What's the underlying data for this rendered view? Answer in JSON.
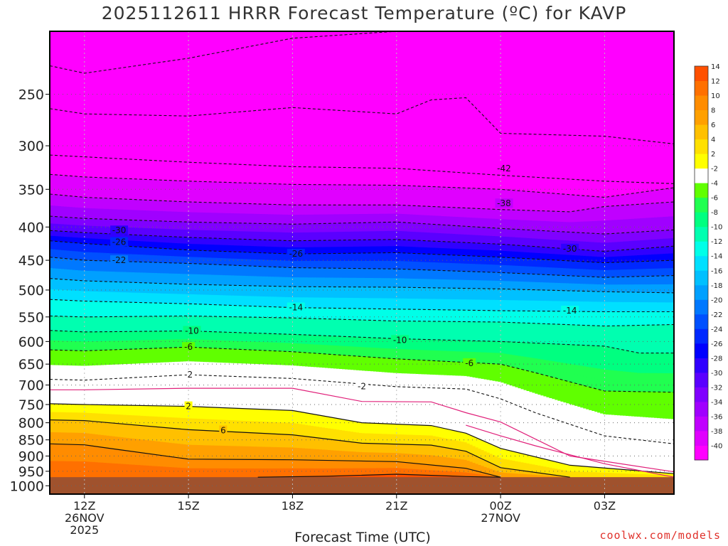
{
  "chart_data": {
    "type": "heatmap",
    "title": "2025112611 HRRR Forecast Temperature (ºC) for KAVP",
    "xlabel": "Forecast Time (UTC)",
    "ylabel": "",
    "x_ticks": [
      {
        "hour": 0,
        "lines": [
          "12Z",
          "26NOV",
          "2025"
        ]
      },
      {
        "hour": 3,
        "lines": [
          "15Z"
        ]
      },
      {
        "hour": 6,
        "lines": [
          "18Z"
        ]
      },
      {
        "hour": 9,
        "lines": [
          "21Z"
        ]
      },
      {
        "hour": 12,
        "lines": [
          "00Z",
          "27NOV"
        ]
      },
      {
        "hour": 15,
        "lines": [
          "03Z"
        ]
      }
    ],
    "xlim": [
      -1,
      17
    ],
    "y_ticks": [
      250,
      300,
      350,
      400,
      450,
      500,
      550,
      600,
      650,
      700,
      750,
      800,
      850,
      900,
      950,
      1000
    ],
    "ylim_hpa": [
      200,
      1030
    ],
    "ground_pressure": 970,
    "colorbar": {
      "levels": [
        -40,
        -38,
        -36,
        -34,
        -32,
        -30,
        -28,
        -26,
        -24,
        -22,
        -20,
        -18,
        -16,
        -14,
        -12,
        -10,
        -8,
        -6,
        -4,
        -2,
        2,
        4,
        6,
        8,
        10,
        12,
        14
      ],
      "colors": [
        "#ff00ff",
        "#e000ff",
        "#c000ff",
        "#a000ff",
        "#8000ff",
        "#5a00ff",
        "#3000ff",
        "#0000ff",
        "#0028ff",
        "#0050ff",
        "#0078ff",
        "#00a0ff",
        "#00c0ff",
        "#00e0ff",
        "#00ffe8",
        "#00ffb0",
        "#00ff80",
        "#20ff50",
        "#60ff00",
        "#ffffff",
        "#ffff00",
        "#ffe000",
        "#ffc000",
        "#ffa000",
        "#ff8c00",
        "#ff7000",
        "#ff5000"
      ]
    },
    "series": [
      {
        "name": "-46",
        "values": [
          [
            -1,
            226
          ],
          [
            0,
            232
          ],
          [
            3,
            220
          ],
          [
            6,
            205
          ],
          [
            9,
            200
          ],
          [
            12,
            200
          ],
          [
            15,
            200
          ],
          [
            17,
            200
          ]
        ]
      },
      {
        "name": "-44",
        "values": [
          [
            -1,
            263
          ],
          [
            0,
            268
          ],
          [
            3,
            270
          ],
          [
            6,
            262
          ],
          [
            9,
            268
          ],
          [
            10,
            255
          ],
          [
            11,
            253
          ],
          [
            12,
            287
          ],
          [
            15,
            290
          ],
          [
            17,
            298
          ]
        ]
      },
      {
        "name": "-42",
        "values": [
          [
            -1,
            310
          ],
          [
            0,
            312
          ],
          [
            3,
            318
          ],
          [
            6,
            323
          ],
          [
            9,
            325
          ],
          [
            12,
            333
          ],
          [
            15,
            340
          ],
          [
            17,
            343
          ]
        ]
      },
      {
        "name": "-40",
        "values": [
          [
            -1,
            332
          ],
          [
            0,
            335
          ],
          [
            3,
            340
          ],
          [
            6,
            344
          ],
          [
            9,
            345
          ],
          [
            12,
            350
          ],
          [
            15,
            360
          ],
          [
            17,
            348
          ]
        ]
      },
      {
        "name": "-38",
        "values": [
          [
            -1,
            356
          ],
          [
            0,
            360
          ],
          [
            3,
            366
          ],
          [
            6,
            370
          ],
          [
            9,
            370
          ],
          [
            12,
            376
          ],
          [
            14,
            379
          ],
          [
            15,
            372
          ],
          [
            17,
            366
          ]
        ]
      },
      {
        "name": "-34",
        "values": [
          [
            -1,
            385
          ],
          [
            0,
            388
          ],
          [
            3,
            393
          ],
          [
            6,
            396
          ],
          [
            9,
            393
          ],
          [
            12,
            402
          ],
          [
            15,
            410
          ],
          [
            17,
            404
          ]
        ]
      },
      {
        "name": "-30",
        "values": [
          [
            -1,
            405
          ],
          [
            0,
            408
          ],
          [
            3,
            415
          ],
          [
            6,
            420
          ],
          [
            9,
            418
          ],
          [
            12,
            425
          ],
          [
            15,
            436
          ],
          [
            17,
            428
          ]
        ]
      },
      {
        "name": "-26",
        "values": [
          [
            -1,
            420
          ],
          [
            0,
            424
          ],
          [
            3,
            434
          ],
          [
            6,
            440
          ],
          [
            9,
            438
          ],
          [
            12,
            445
          ],
          [
            15,
            454
          ],
          [
            17,
            450
          ]
        ]
      },
      {
        "name": "-22",
        "values": [
          [
            -1,
            445
          ],
          [
            0,
            450
          ],
          [
            3,
            455
          ],
          [
            6,
            462
          ],
          [
            9,
            464
          ],
          [
            12,
            470
          ],
          [
            15,
            478
          ],
          [
            17,
            475
          ]
        ]
      },
      {
        "name": "-18",
        "values": [
          [
            -1,
            480
          ],
          [
            0,
            484
          ],
          [
            3,
            490
          ],
          [
            6,
            494
          ],
          [
            9,
            495
          ],
          [
            12,
            498
          ],
          [
            15,
            503
          ],
          [
            17,
            505
          ]
        ]
      },
      {
        "name": "-14",
        "values": [
          [
            -1,
            517
          ],
          [
            0,
            520
          ],
          [
            3,
            525
          ],
          [
            6,
            532
          ],
          [
            9,
            535
          ],
          [
            12,
            538
          ],
          [
            15,
            540
          ],
          [
            17,
            540
          ]
        ]
      },
      {
        "name": "-12",
        "values": [
          [
            -1,
            548
          ],
          [
            0,
            550
          ],
          [
            3,
            548
          ],
          [
            6,
            552
          ],
          [
            9,
            558
          ],
          [
            12,
            560
          ],
          [
            15,
            568
          ],
          [
            17,
            565
          ]
        ]
      },
      {
        "name": "-10",
        "values": [
          [
            -1,
            577
          ],
          [
            0,
            580
          ],
          [
            3,
            578
          ],
          [
            6,
            585
          ],
          [
            9,
            594
          ],
          [
            12,
            600
          ],
          [
            15,
            610
          ],
          [
            16,
            625
          ],
          [
            17,
            625
          ]
        ]
      },
      {
        "name": "-6",
        "values": [
          [
            -1,
            618
          ],
          [
            0,
            620
          ],
          [
            3,
            612
          ],
          [
            6,
            622
          ],
          [
            9,
            638
          ],
          [
            12,
            650
          ],
          [
            13,
            670
          ],
          [
            15,
            715
          ],
          [
            17,
            718
          ]
        ]
      },
      {
        "name": "-2",
        "values": [
          [
            -1,
            686
          ],
          [
            0,
            688
          ],
          [
            3,
            675
          ],
          [
            6,
            684
          ],
          [
            9,
            704
          ],
          [
            11,
            710
          ],
          [
            12,
            735
          ],
          [
            13,
            772
          ],
          [
            15,
            838
          ],
          [
            17,
            862
          ]
        ]
      },
      {
        "name": "2",
        "values": [
          [
            -1,
            748
          ],
          [
            0,
            750
          ],
          [
            3,
            755
          ],
          [
            6,
            766
          ],
          [
            8,
            800
          ],
          [
            10,
            808
          ],
          [
            11,
            830
          ],
          [
            12,
            876
          ],
          [
            14,
            930
          ],
          [
            17,
            958
          ]
        ]
      },
      {
        "name": "6",
        "values": [
          [
            -1,
            792
          ],
          [
            0,
            794
          ],
          [
            3,
            820
          ],
          [
            6,
            835
          ],
          [
            8,
            860
          ],
          [
            10,
            866
          ],
          [
            11,
            885
          ],
          [
            12,
            938
          ],
          [
            14,
            970
          ]
        ]
      },
      {
        "name": "10",
        "values": [
          [
            -1,
            862
          ],
          [
            0,
            865
          ],
          [
            1,
            880
          ],
          [
            3,
            910
          ],
          [
            6,
            912
          ],
          [
            9,
            918
          ],
          [
            11,
            940
          ],
          [
            12,
            970
          ]
        ]
      },
      {
        "name": "14",
        "values": [
          [
            5,
            970
          ],
          [
            7,
            967
          ],
          [
            9,
            960
          ],
          [
            11,
            968
          ],
          [
            12,
            970
          ]
        ]
      },
      {
        "name": "0_upper",
        "values": [
          [
            -1,
            712
          ],
          [
            0,
            712
          ],
          [
            3,
            708
          ],
          [
            6,
            708
          ],
          [
            8,
            742
          ],
          [
            10,
            743
          ],
          [
            11,
            772
          ],
          [
            12,
            798
          ],
          [
            14,
            900
          ],
          [
            17,
            952
          ]
        ]
      },
      {
        "name": "0_lower",
        "values": [
          [
            11,
            807
          ],
          [
            12,
            838
          ],
          [
            13,
            868
          ],
          [
            15,
            925
          ],
          [
            17,
            970
          ]
        ]
      }
    ],
    "labels": [
      {
        "text": "-42",
        "hour": 12.1,
        "p": 325
      },
      {
        "text": "-38",
        "hour": 12.1,
        "p": 368
      },
      {
        "text": "-30",
        "hour": 1.0,
        "p": 405
      },
      {
        "text": "-26",
        "hour": 1.0,
        "p": 422
      },
      {
        "text": "-26",
        "hour": 6.1,
        "p": 440
      },
      {
        "text": "-30",
        "hour": 14.0,
        "p": 432
      },
      {
        "text": "-22",
        "hour": 1.0,
        "p": 450
      },
      {
        "text": "-14",
        "hour": 6.1,
        "p": 532
      },
      {
        "text": "-14",
        "hour": 14.0,
        "p": 538
      },
      {
        "text": "-10",
        "hour": 3.1,
        "p": 578
      },
      {
        "text": "-10",
        "hour": 9.1,
        "p": 597
      },
      {
        "text": "-6",
        "hour": 3.0,
        "p": 612
      },
      {
        "text": "-6",
        "hour": 11.1,
        "p": 648
      },
      {
        "text": "-2",
        "hour": 3.0,
        "p": 675
      },
      {
        "text": "-2",
        "hour": 8.0,
        "p": 703
      },
      {
        "text": "2",
        "hour": 3.0,
        "p": 755
      },
      {
        "text": "6",
        "hour": 4.0,
        "p": 822
      }
    ]
  },
  "credit": "coolwx.com/models"
}
